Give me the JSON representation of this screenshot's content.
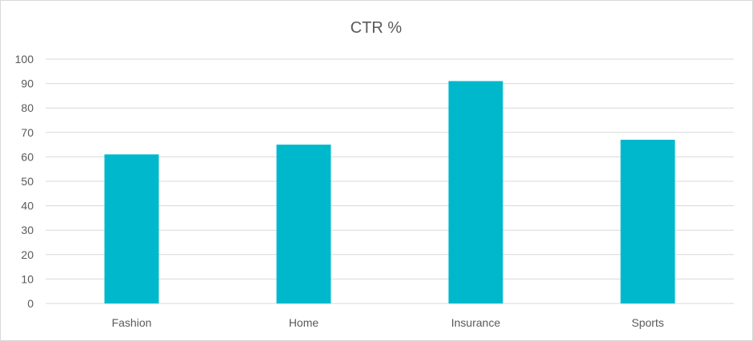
{
  "chart_data": {
    "type": "bar",
    "title": "CTR %",
    "xlabel": "",
    "ylabel": "",
    "categories": [
      "Fashion",
      "Home",
      "Insurance",
      "Sports"
    ],
    "values": [
      61,
      65,
      91,
      67
    ],
    "ylim": [
      0,
      100
    ],
    "yticks": [
      0,
      10,
      20,
      30,
      40,
      50,
      60,
      70,
      80,
      90,
      100
    ],
    "grid": true,
    "legend": "none",
    "bar_color": "#00b8cc",
    "gridline_color": "#d9d9d9"
  }
}
